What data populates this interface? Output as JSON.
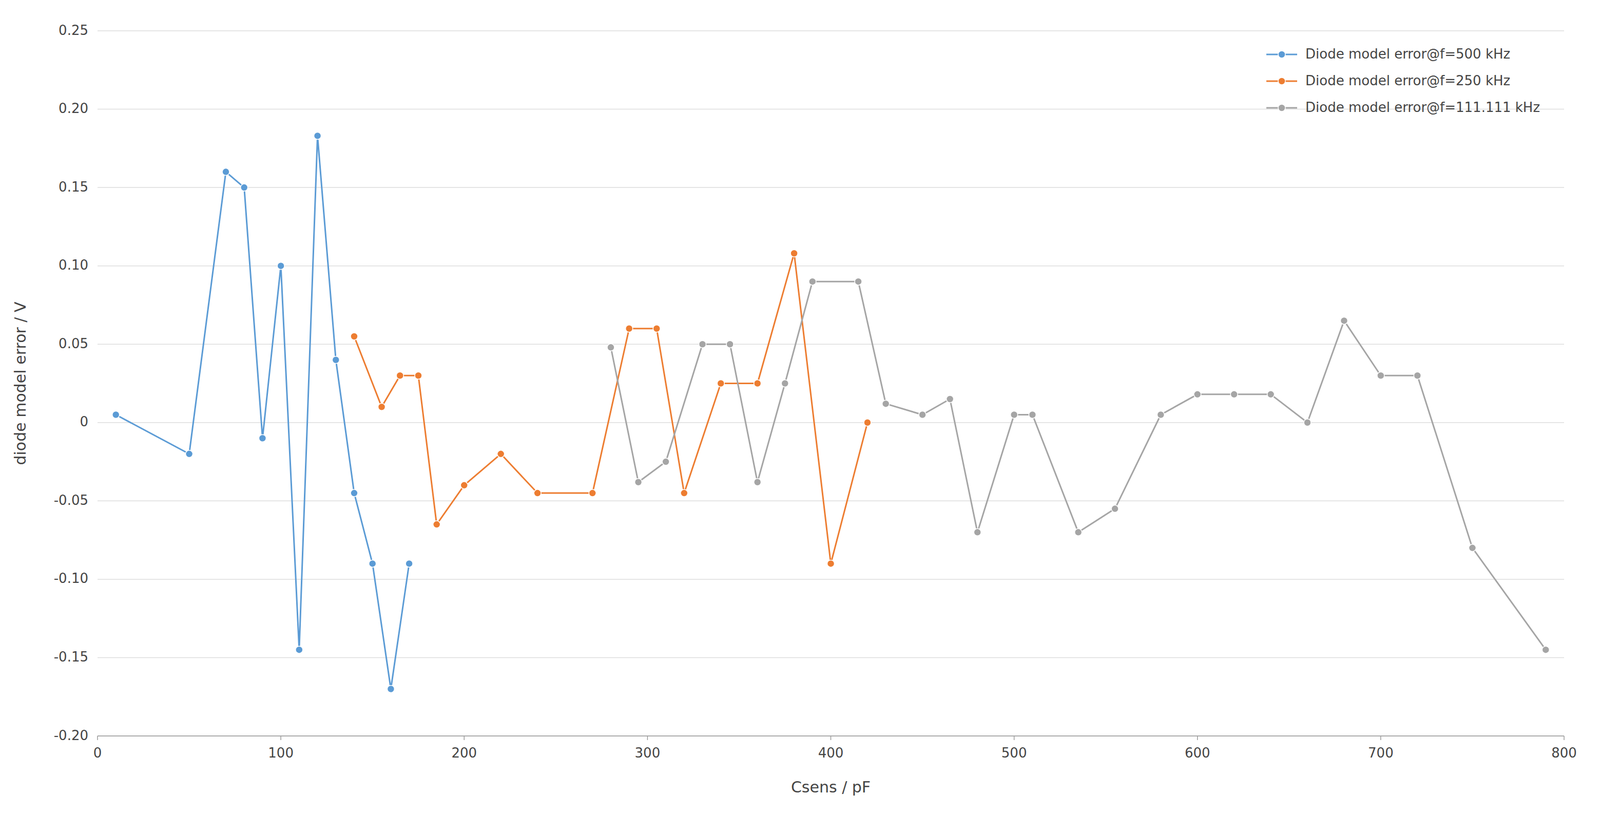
{
  "chart_data": {
    "type": "line",
    "xlabel": "Csens / pF",
    "ylabel": "diode model error / V",
    "xlim": [
      0,
      800
    ],
    "ylim": [
      -0.2,
      0.25
    ],
    "xticks": [
      0,
      100,
      200,
      300,
      400,
      500,
      600,
      700,
      800
    ],
    "yticks": [
      {
        "value": -0.2,
        "label": "-0.20"
      },
      -0.15,
      {
        "value": -0.1,
        "label": "-0.10"
      },
      -0.05,
      0,
      0.05,
      {
        "value": 0.1,
        "label": "0.10"
      },
      0.15,
      {
        "value": 0.2,
        "label": "0.20"
      },
      0.25
    ],
    "grid": true,
    "legend": "upper right",
    "series": [
      {
        "name": "Diode model error@f=500 kHz",
        "color": "#5B9BD5",
        "marker": "circle",
        "x": [
          10,
          50,
          70,
          80,
          90,
          100,
          110,
          120,
          130,
          140,
          150,
          160,
          170
        ],
        "values": [
          0.005,
          -0.02,
          0.16,
          0.15,
          -0.01,
          0.1,
          -0.145,
          0.183,
          0.04,
          -0.045,
          -0.09,
          -0.17,
          -0.09
        ]
      },
      {
        "name": "Diode model error@f=250 kHz",
        "color": "#ED7D31",
        "marker": "circle",
        "x": [
          140,
          155,
          165,
          175,
          185,
          200,
          220,
          240,
          270,
          290,
          305,
          320,
          340,
          360,
          380,
          400,
          420
        ],
        "values": [
          0.055,
          0.01,
          0.03,
          0.03,
          -0.065,
          -0.04,
          -0.02,
          -0.045,
          -0.045,
          0.06,
          0.06,
          -0.045,
          0.025,
          0.025,
          0.108,
          -0.09,
          0.0
        ]
      },
      {
        "name": "Diode model error@f=111.111 kHz",
        "color": "#A5A5A5",
        "marker": "circle",
        "x": [
          280,
          295,
          310,
          330,
          345,
          360,
          375,
          390,
          415,
          430,
          450,
          465,
          480,
          500,
          510,
          535,
          555,
          580,
          600,
          620,
          640,
          660,
          680,
          700,
          720,
          750,
          790
        ],
        "values": [
          0.048,
          -0.038,
          -0.025,
          0.05,
          0.05,
          -0.038,
          0.025,
          0.09,
          0.09,
          0.012,
          0.005,
          0.015,
          -0.07,
          0.005,
          0.005,
          -0.07,
          -0.055,
          0.005,
          0.018,
          0.018,
          0.018,
          0.0,
          0.065,
          0.03,
          0.03,
          -0.08,
          -0.145
        ]
      }
    ]
  }
}
